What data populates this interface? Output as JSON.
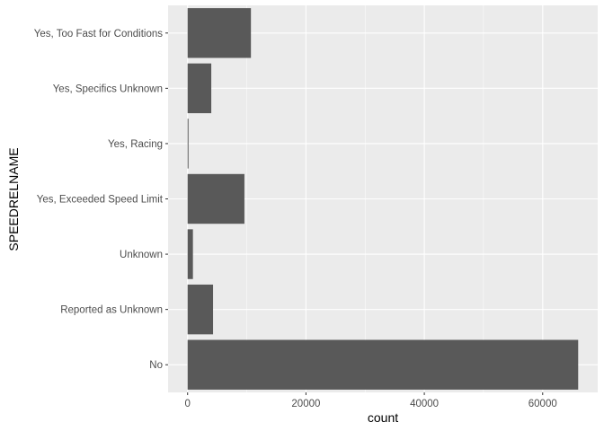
{
  "chart_data": {
    "type": "bar",
    "orientation": "horizontal",
    "categories": [
      "No",
      "Reported as Unknown",
      "Unknown",
      "Yes, Exceeded Speed Limit",
      "Yes, Racing",
      "Yes, Specifics Unknown",
      "Yes, Too Fast for Conditions"
    ],
    "values": [
      66000,
      4300,
      900,
      9600,
      150,
      4000,
      10700
    ],
    "xlabel": "count",
    "ylabel": "SPEEDRELNAME",
    "xlim": [
      -3300,
      69300
    ],
    "xticks": [
      0,
      20000,
      40000,
      60000
    ],
    "xtick_labels": [
      "0",
      "20000",
      "40000",
      "60000"
    ],
    "grid": true,
    "colors": {
      "panel_background": "#ebebeb",
      "grid_major": "#ffffff",
      "bar_fill": "#595959",
      "tick_text": "#4d4d4d",
      "axis_title": "#000000"
    }
  }
}
